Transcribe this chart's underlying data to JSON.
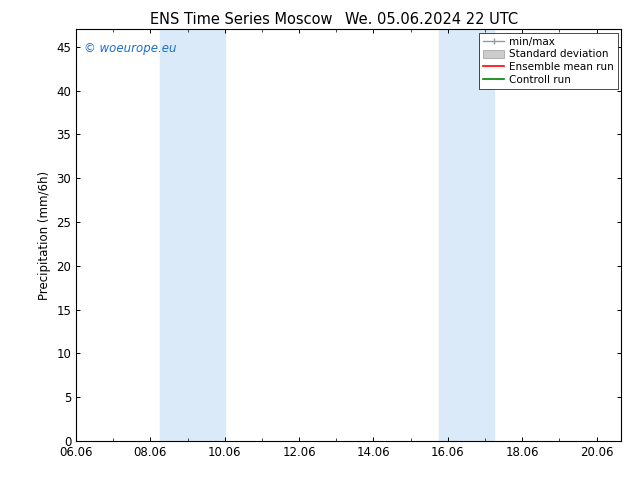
{
  "title_left": "ENS Time Series Moscow",
  "title_right": "We. 05.06.2024 22 UTC",
  "ylabel": "Precipitation (mm/6h)",
  "xlim_start": 0.0,
  "xlim_end": 14.667,
  "ylim": [
    0,
    47
  ],
  "yticks": [
    0,
    5,
    10,
    15,
    20,
    25,
    30,
    35,
    40,
    45
  ],
  "xtick_labels": [
    "06.06",
    "08.06",
    "10.06",
    "12.06",
    "14.06",
    "16.06",
    "18.06",
    "20.06"
  ],
  "xtick_positions": [
    0,
    2,
    4,
    6,
    8,
    10,
    12,
    14
  ],
  "shaded_bands": [
    {
      "xmin": 2.25,
      "xmax": 4.0
    },
    {
      "xmin": 9.75,
      "xmax": 11.25
    }
  ],
  "shaded_color": "#daeaf8",
  "watermark_text": "© woeurope.eu",
  "watermark_color": "#1a6fcc",
  "legend_items": [
    {
      "label": "min/max",
      "color": "#999999",
      "lw": 1.0,
      "style": "min_max"
    },
    {
      "label": "Standard deviation",
      "color": "#cccccc",
      "lw": 5,
      "style": "band"
    },
    {
      "label": "Ensemble mean run",
      "color": "red",
      "lw": 1.2,
      "style": "line"
    },
    {
      "label": "Controll run",
      "color": "green",
      "lw": 1.2,
      "style": "line"
    }
  ],
  "bg_color": "white",
  "title_fontsize": 10.5,
  "tick_fontsize": 8.5,
  "ylabel_fontsize": 8.5,
  "watermark_fontsize": 8.5,
  "legend_fontsize": 7.5
}
